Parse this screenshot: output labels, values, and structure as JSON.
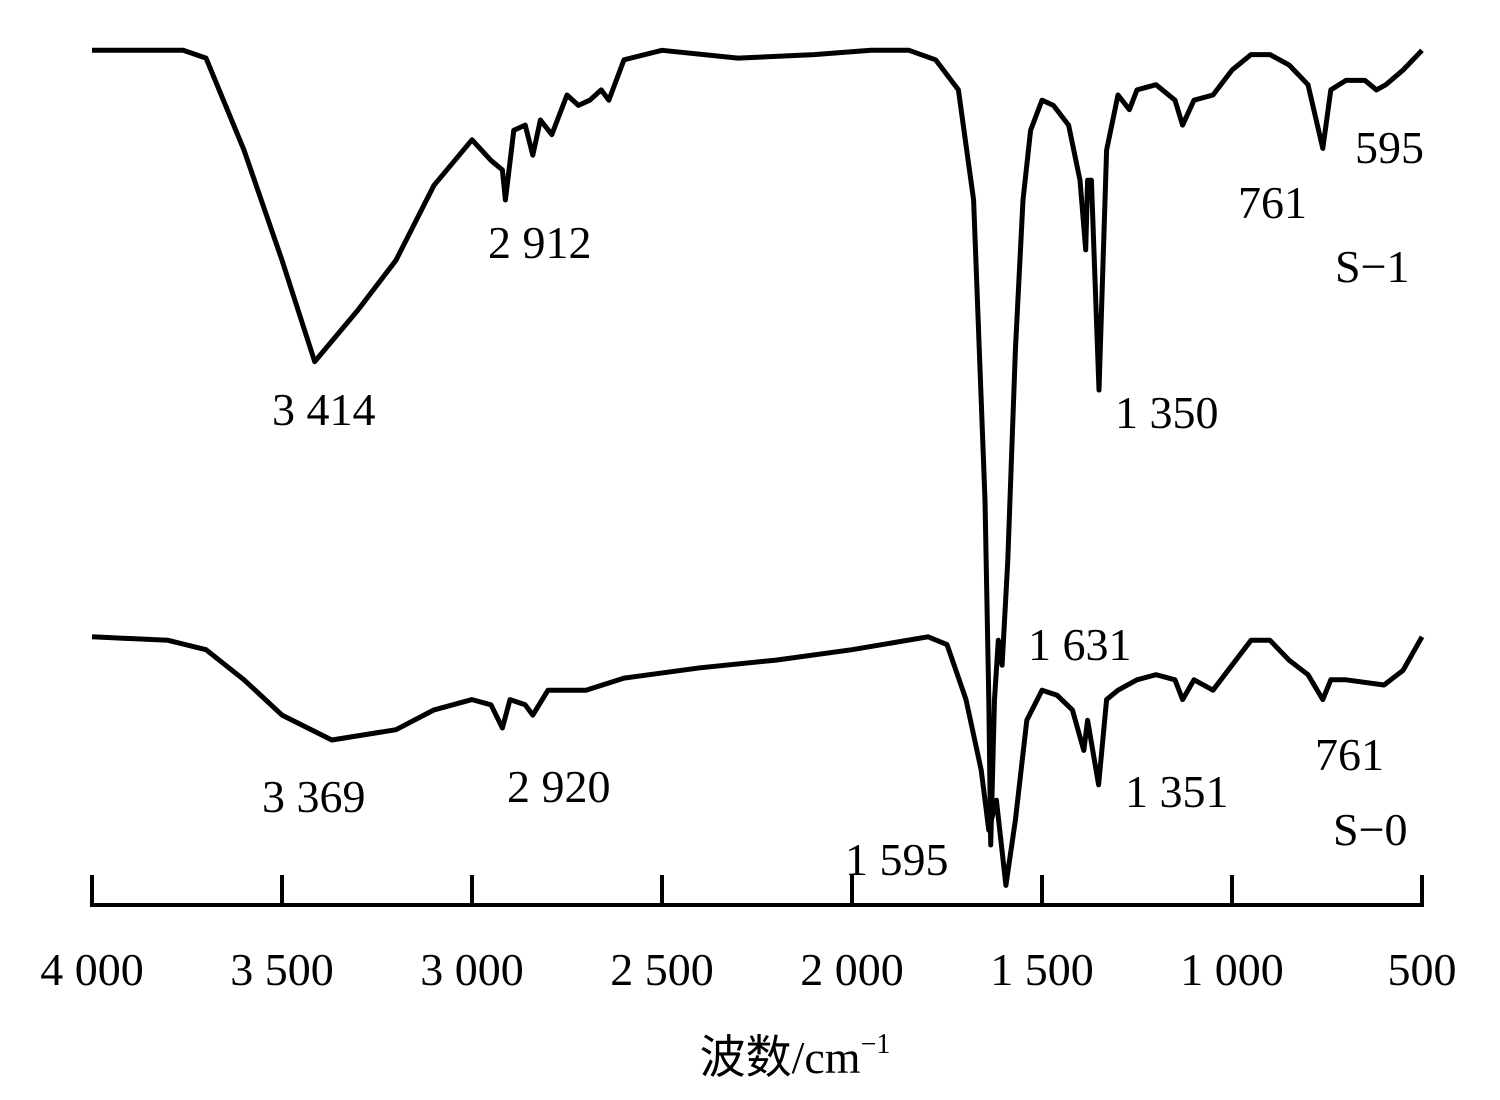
{
  "chart_data": {
    "type": "line",
    "title": "",
    "xlabel": "波数/cm",
    "xlabel_sup": "−1",
    "ylabel": "",
    "xlim": [
      4000,
      500
    ],
    "x_reversed": true,
    "ylim": [
      0,
      100
    ],
    "grid": false,
    "y_axis_shown": false,
    "line_color": "#000000",
    "xticks": [
      4000,
      3500,
      3000,
      2500,
      2000,
      1500,
      1000,
      500
    ],
    "xtick_labels": [
      "4 000",
      "3 500",
      "3 000",
      "2 500",
      "2 000",
      "1 500",
      "1 000",
      "500"
    ],
    "series": [
      {
        "name": "S−1",
        "points": [
          [
            4000,
            98.8
          ],
          [
            3760,
            98.8
          ],
          [
            3700,
            97.9
          ],
          [
            3600,
            87.2
          ],
          [
            3500,
            74.4
          ],
          [
            3414,
            62.6
          ],
          [
            3300,
            68.6
          ],
          [
            3200,
            74.4
          ],
          [
            3100,
            83.1
          ],
          [
            3000,
            88.4
          ],
          [
            2950,
            86.0
          ],
          [
            2920,
            84.9
          ],
          [
            2912,
            81.4
          ],
          [
            2890,
            89.5
          ],
          [
            2860,
            90.1
          ],
          [
            2840,
            86.6
          ],
          [
            2820,
            90.7
          ],
          [
            2790,
            89.0
          ],
          [
            2750,
            93.6
          ],
          [
            2720,
            92.4
          ],
          [
            2690,
            93.0
          ],
          [
            2660,
            94.2
          ],
          [
            2640,
            93.0
          ],
          [
            2600,
            97.7
          ],
          [
            2500,
            98.8
          ],
          [
            2300,
            97.9
          ],
          [
            2100,
            98.3
          ],
          [
            1950,
            98.8
          ],
          [
            1850,
            98.8
          ],
          [
            1780,
            97.7
          ],
          [
            1720,
            94.2
          ],
          [
            1680,
            81.4
          ],
          [
            1650,
            46.5
          ],
          [
            1640,
            23.3
          ],
          [
            1635,
            6.4
          ],
          [
            1625,
            23.3
          ],
          [
            1615,
            30.2
          ],
          [
            1605,
            27.3
          ],
          [
            1590,
            39.5
          ],
          [
            1570,
            64.0
          ],
          [
            1550,
            81.4
          ],
          [
            1530,
            89.5
          ],
          [
            1500,
            93.0
          ],
          [
            1470,
            92.4
          ],
          [
            1430,
            90.1
          ],
          [
            1400,
            83.7
          ],
          [
            1385,
            75.6
          ],
          [
            1380,
            83.7
          ],
          [
            1370,
            83.7
          ],
          [
            1350,
            59.3
          ],
          [
            1330,
            87.2
          ],
          [
            1300,
            93.6
          ],
          [
            1270,
            91.9
          ],
          [
            1250,
            94.2
          ],
          [
            1200,
            94.8
          ],
          [
            1150,
            93.0
          ],
          [
            1130,
            90.1
          ],
          [
            1100,
            93.0
          ],
          [
            1050,
            93.6
          ],
          [
            1000,
            96.5
          ],
          [
            950,
            98.3
          ],
          [
            900,
            98.3
          ],
          [
            850,
            97.1
          ],
          [
            800,
            94.8
          ],
          [
            761,
            87.4
          ],
          [
            740,
            94.2
          ],
          [
            700,
            95.3
          ],
          [
            650,
            95.3
          ],
          [
            620,
            94.2
          ],
          [
            595,
            94.8
          ],
          [
            550,
            96.5
          ],
          [
            500,
            98.8
          ]
        ],
        "annotations": [
          "3 414",
          "2 912",
          "1 350",
          "761",
          "595"
        ]
      },
      {
        "name": "S−0",
        "points": [
          [
            4000,
            30.6
          ],
          [
            3800,
            30.2
          ],
          [
            3700,
            29.1
          ],
          [
            3600,
            25.6
          ],
          [
            3500,
            21.5
          ],
          [
            3369,
            18.6
          ],
          [
            3200,
            19.8
          ],
          [
            3100,
            22.1
          ],
          [
            3000,
            23.3
          ],
          [
            2950,
            22.7
          ],
          [
            2920,
            20.0
          ],
          [
            2900,
            23.3
          ],
          [
            2860,
            22.7
          ],
          [
            2840,
            21.5
          ],
          [
            2800,
            24.4
          ],
          [
            2700,
            24.4
          ],
          [
            2600,
            25.8
          ],
          [
            2400,
            27.0
          ],
          [
            2200,
            27.9
          ],
          [
            2000,
            29.1
          ],
          [
            1800,
            30.6
          ],
          [
            1750,
            29.7
          ],
          [
            1700,
            23.3
          ],
          [
            1660,
            15.1
          ],
          [
            1640,
            8.1
          ],
          [
            1620,
            11.6
          ],
          [
            1595,
            1.7
          ],
          [
            1570,
            9.3
          ],
          [
            1540,
            20.9
          ],
          [
            1500,
            24.4
          ],
          [
            1460,
            23.8
          ],
          [
            1420,
            22.1
          ],
          [
            1390,
            17.4
          ],
          [
            1380,
            20.9
          ],
          [
            1351,
            13.4
          ],
          [
            1330,
            23.3
          ],
          [
            1300,
            24.4
          ],
          [
            1250,
            25.6
          ],
          [
            1200,
            26.2
          ],
          [
            1150,
            25.6
          ],
          [
            1130,
            23.3
          ],
          [
            1100,
            25.6
          ],
          [
            1050,
            24.4
          ],
          [
            1000,
            27.3
          ],
          [
            950,
            30.2
          ],
          [
            900,
            30.2
          ],
          [
            850,
            27.9
          ],
          [
            800,
            26.2
          ],
          [
            761,
            23.3
          ],
          [
            740,
            25.6
          ],
          [
            700,
            25.6
          ],
          [
            600,
            25.0
          ],
          [
            550,
            26.7
          ],
          [
            500,
            30.6
          ]
        ],
        "annotations": [
          "3 369",
          "2 920",
          "1 595",
          "1 631",
          "1 351",
          "761"
        ]
      }
    ]
  }
}
